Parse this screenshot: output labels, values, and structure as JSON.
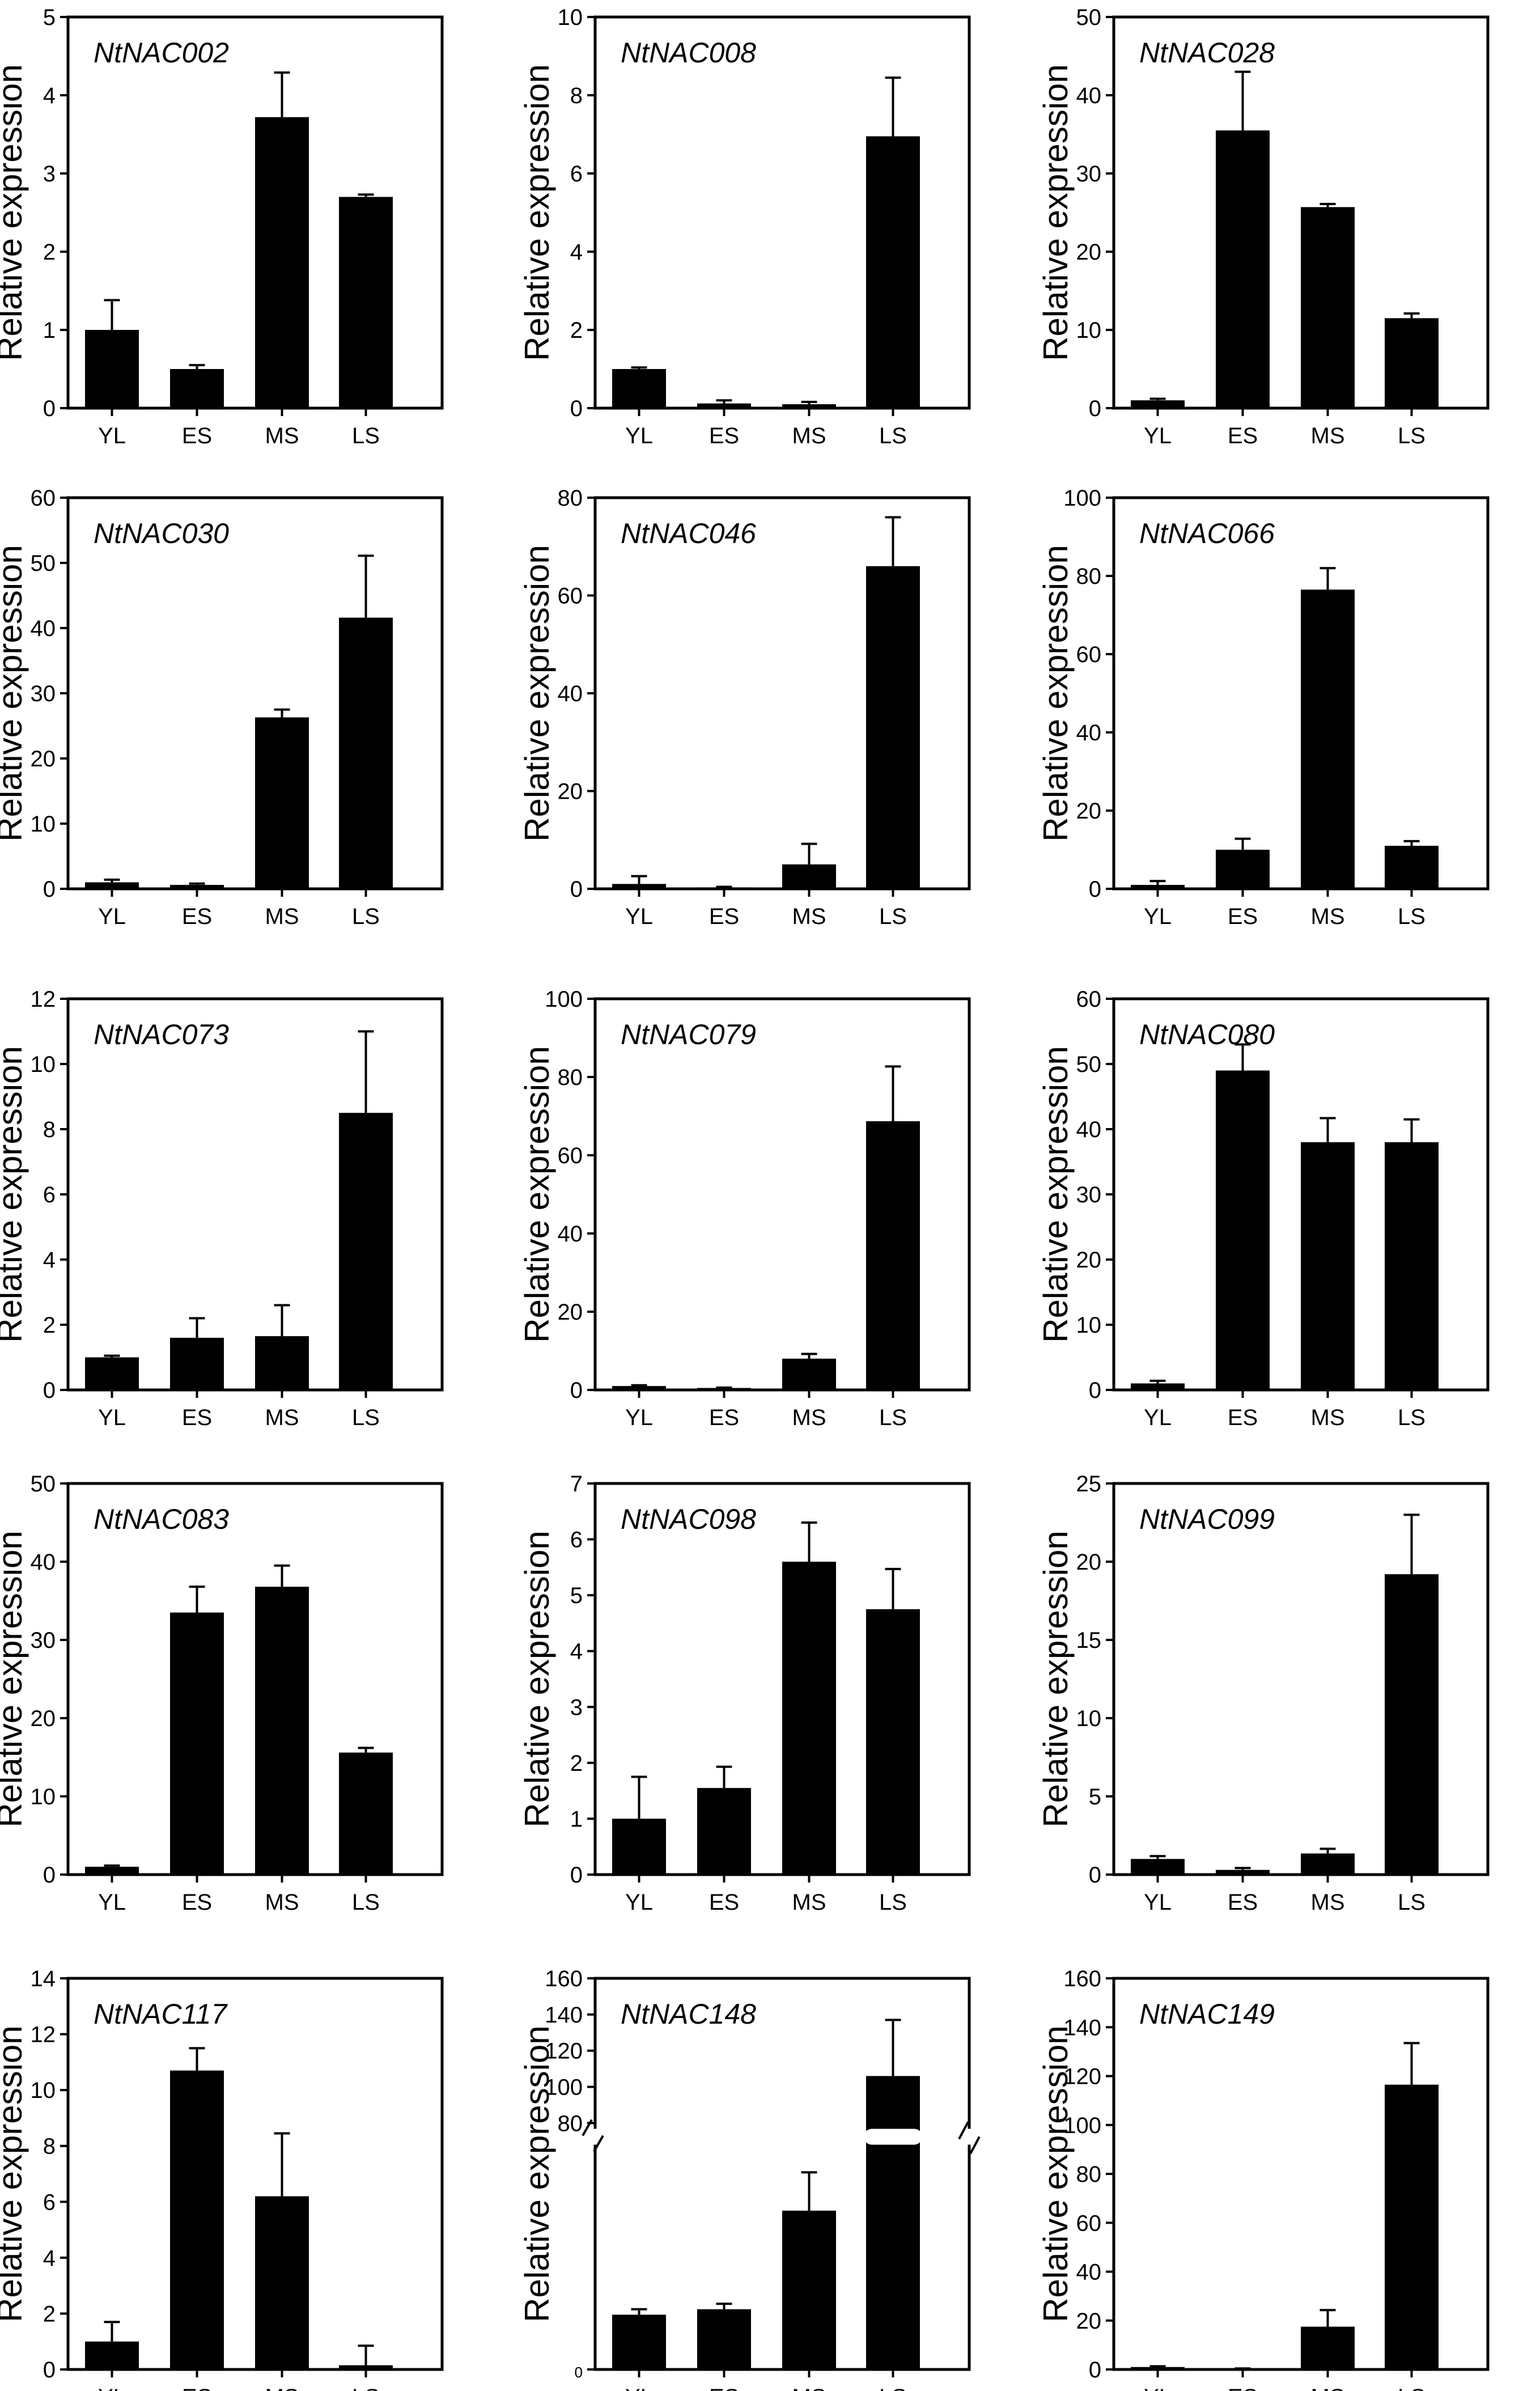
{
  "figure": {
    "categories": [
      "YL",
      "ES",
      "MS",
      "LS"
    ],
    "ylabel": "Relative expression",
    "bar_color": "#000000",
    "frame_color": "#000000",
    "background": "#ffffff"
  },
  "chart_data": [
    {
      "type": "bar",
      "title": "NtNAC002",
      "ylabel": "Relative expression",
      "categories": [
        "YL",
        "ES",
        "MS",
        "LS"
      ],
      "ylim": [
        0,
        5
      ],
      "yticks": [
        0,
        1,
        2,
        3,
        4,
        5
      ],
      "tick_labels": [
        "0",
        "1",
        "2",
        "3",
        "4",
        "5"
      ],
      "values": [
        1.0,
        0.5,
        3.72,
        2.7
      ],
      "errors": [
        0.38,
        0.05,
        0.57,
        0.03
      ]
    },
    {
      "type": "bar",
      "title": "NtNAC008",
      "ylabel": "Relative expression",
      "categories": [
        "YL",
        "ES",
        "MS",
        "LS"
      ],
      "ylim": [
        0,
        10
      ],
      "yticks": [
        0,
        2,
        4,
        6,
        8,
        10
      ],
      "tick_labels": [
        "0",
        "2",
        "4",
        "6",
        "8",
        "10"
      ],
      "values": [
        1.0,
        0.12,
        0.1,
        6.95
      ],
      "errors": [
        0.04,
        0.08,
        0.06,
        1.5
      ]
    },
    {
      "type": "bar",
      "title": "NtNAC028",
      "ylabel": "Relative expression",
      "categories": [
        "YL",
        "ES",
        "MS",
        "LS"
      ],
      "ylim": [
        0,
        50
      ],
      "yticks": [
        0,
        10,
        20,
        30,
        40,
        50
      ],
      "tick_labels": [
        "0",
        "10",
        "20",
        "30",
        "40",
        "50"
      ],
      "values": [
        1.0,
        35.5,
        25.7,
        11.5
      ],
      "errors": [
        0.2,
        7.5,
        0.4,
        0.6
      ]
    },
    {
      "type": "bar",
      "title": "NtNAC030",
      "ylabel": "Relative expression",
      "categories": [
        "YL",
        "ES",
        "MS",
        "LS"
      ],
      "ylim": [
        0,
        60
      ],
      "yticks": [
        0,
        10,
        20,
        30,
        40,
        50,
        60
      ],
      "tick_labels": [
        "0",
        "10",
        "20",
        "30",
        "40",
        "50",
        "60"
      ],
      "values": [
        1.0,
        0.6,
        26.3,
        41.6
      ],
      "errors": [
        0.4,
        0.2,
        1.2,
        9.5
      ]
    },
    {
      "type": "bar",
      "title": "NtNAC046",
      "ylabel": "Relative expression",
      "categories": [
        "YL",
        "ES",
        "MS",
        "LS"
      ],
      "ylim": [
        0,
        80
      ],
      "yticks": [
        0,
        20,
        40,
        60,
        80
      ],
      "tick_labels": [
        "0",
        "20",
        "40",
        "60",
        "80"
      ],
      "values": [
        1.0,
        0.3,
        5.0,
        66.0
      ],
      "errors": [
        1.6,
        0.1,
        4.2,
        10.0
      ]
    },
    {
      "type": "bar",
      "title": "NtNAC066",
      "ylabel": "Relative expression",
      "categories": [
        "YL",
        "ES",
        "MS",
        "LS"
      ],
      "ylim": [
        0,
        100
      ],
      "yticks": [
        0,
        20,
        40,
        60,
        80,
        100
      ],
      "tick_labels": [
        "0",
        "20",
        "40",
        "60",
        "80",
        "100"
      ],
      "values": [
        1.0,
        10.0,
        76.5,
        11.0
      ],
      "errors": [
        1.0,
        2.8,
        5.5,
        1.2
      ]
    },
    {
      "type": "bar",
      "title": "NtNAC073",
      "ylabel": "Relative expression",
      "categories": [
        "YL",
        "ES",
        "MS",
        "LS"
      ],
      "ylim": [
        0,
        12
      ],
      "yticks": [
        0,
        2,
        4,
        6,
        8,
        10,
        12
      ],
      "tick_labels": [
        "0",
        "2",
        "4",
        "6",
        "8",
        "10",
        "12"
      ],
      "values": [
        1.0,
        1.6,
        1.65,
        8.5
      ],
      "errors": [
        0.05,
        0.6,
        0.95,
        2.5
      ]
    },
    {
      "type": "bar",
      "title": "NtNAC079",
      "ylabel": "Relative expression",
      "categories": [
        "YL",
        "ES",
        "MS",
        "LS"
      ],
      "ylim": [
        0,
        100
      ],
      "yticks": [
        0,
        20,
        40,
        60,
        80,
        100
      ],
      "tick_labels": [
        "0",
        "20",
        "40",
        "60",
        "80",
        "100"
      ],
      "values": [
        1.0,
        0.5,
        8.0,
        68.7
      ],
      "errors": [
        0.2,
        0.1,
        1.2,
        14.0
      ]
    },
    {
      "type": "bar",
      "title": "NtNAC080",
      "ylabel": "Relative expression",
      "categories": [
        "YL",
        "ES",
        "MS",
        "LS"
      ],
      "ylim": [
        0,
        60
      ],
      "yticks": [
        0,
        10,
        20,
        30,
        40,
        50,
        60
      ],
      "tick_labels": [
        "0",
        "10",
        "20",
        "30",
        "40",
        "50",
        "60"
      ],
      "values": [
        1.0,
        49.0,
        38.0,
        38.0
      ],
      "errors": [
        0.4,
        4.0,
        3.7,
        3.5
      ]
    },
    {
      "type": "bar",
      "title": "NtNAC083",
      "ylabel": "Relative expression",
      "categories": [
        "YL",
        "ES",
        "MS",
        "LS"
      ],
      "ylim": [
        0,
        50
      ],
      "yticks": [
        0,
        10,
        20,
        30,
        40,
        50
      ],
      "tick_labels": [
        "0",
        "10",
        "20",
        "30",
        "40",
        "50"
      ],
      "values": [
        1.0,
        33.5,
        36.8,
        15.6
      ],
      "errors": [
        0.15,
        3.3,
        2.7,
        0.6
      ]
    },
    {
      "type": "bar",
      "title": "NtNAC098",
      "ylabel": "Relative expression",
      "categories": [
        "YL",
        "ES",
        "MS",
        "LS"
      ],
      "ylim": [
        0,
        7
      ],
      "yticks": [
        0,
        1,
        2,
        3,
        4,
        5,
        6,
        7
      ],
      "tick_labels": [
        "0",
        "1",
        "2",
        "3",
        "4",
        "5",
        "6",
        "7"
      ],
      "values": [
        1.0,
        1.55,
        5.6,
        4.75
      ],
      "errors": [
        0.75,
        0.38,
        0.7,
        0.72
      ]
    },
    {
      "type": "bar",
      "title": "NtNAC099",
      "ylabel": "Relative expression",
      "categories": [
        "YL",
        "ES",
        "MS",
        "LS"
      ],
      "ylim": [
        0,
        25
      ],
      "yticks": [
        0,
        5,
        10,
        15,
        20,
        25
      ],
      "tick_labels": [
        "0",
        "5",
        "10",
        "15",
        "20",
        "25"
      ],
      "values": [
        1.0,
        0.3,
        1.35,
        19.2
      ],
      "errors": [
        0.18,
        0.12,
        0.3,
        3.8
      ]
    },
    {
      "type": "bar",
      "title": "NtNAC117",
      "ylabel": "Relative expression",
      "categories": [
        "YL",
        "ES",
        "MS",
        "LS"
      ],
      "ylim": [
        0,
        14
      ],
      "yticks": [
        0,
        2,
        4,
        6,
        8,
        10,
        12,
        14
      ],
      "tick_labels": [
        "0",
        "2",
        "4",
        "6",
        "8",
        "10",
        "12",
        "14"
      ],
      "values": [
        1.0,
        10.7,
        6.2,
        0.15
      ],
      "errors": [
        0.7,
        0.8,
        2.25,
        0.7
      ]
    },
    {
      "type": "bar",
      "title": "NtNAC148",
      "ylabel": "Relative expression",
      "categories": [
        "YL",
        "ES",
        "MS",
        "LS"
      ],
      "broken_axis": true,
      "ylim": [
        0,
        160
      ],
      "break_at": 80,
      "yticks": [
        0,
        80,
        100,
        120,
        140,
        160
      ],
      "tick_labels": [
        "0",
        "80",
        "100",
        "120",
        "140",
        "160"
      ],
      "values": [
        1.0,
        1.1,
        2.9,
        106.0
      ],
      "errors": [
        0.1,
        0.1,
        0.7,
        31.0
      ]
    },
    {
      "type": "bar",
      "title": "NtNAC149",
      "ylabel": "Relative expression",
      "categories": [
        "YL",
        "ES",
        "MS",
        "LS"
      ],
      "ylim": [
        0,
        160
      ],
      "yticks": [
        0,
        20,
        40,
        60,
        80,
        100,
        120,
        140,
        160
      ],
      "tick_labels": [
        "0",
        "20",
        "40",
        "60",
        "80",
        "100",
        "120",
        "140",
        "160"
      ],
      "values": [
        1.0,
        0.3,
        17.5,
        116.5
      ],
      "errors": [
        0.3,
        0.1,
        6.8,
        17.0
      ]
    }
  ]
}
